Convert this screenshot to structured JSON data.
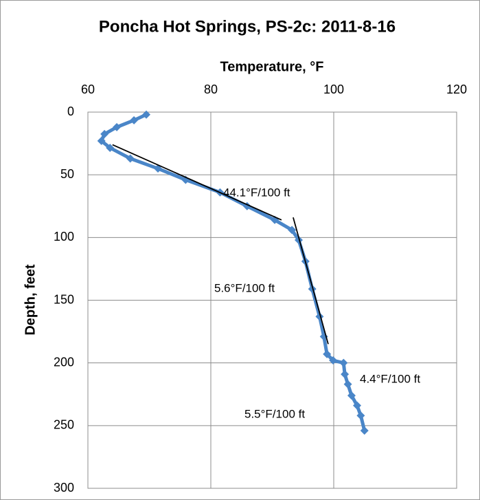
{
  "chart_data": {
    "type": "scatter",
    "title": "Poncha Hot Springs, PS-2c: 2011-8-16",
    "x_label": "Temperature, °F",
    "y_label": "Depth, feet",
    "x_axis_position": "top",
    "y_inverted": true,
    "grid": true,
    "xlim": [
      60,
      120
    ],
    "xticks": [
      60,
      80,
      100,
      120
    ],
    "ylim": [
      0,
      300
    ],
    "yticks": [
      0,
      50,
      100,
      150,
      200,
      250,
      300
    ],
    "series": [
      {
        "color": "#4a86c8",
        "x": [
          69.5,
          67.5,
          64.7,
          62.7,
          62.2,
          63.6,
          66.9,
          71.4,
          75.9,
          81.5,
          85.9,
          90.4,
          93.2,
          94.3,
          95.4,
          96.5,
          97.7,
          98.4,
          98.9,
          99.9,
          101.6,
          101.8,
          102.3,
          102.9,
          103.8,
          104.4,
          105
        ],
        "y": [
          2,
          6.5,
          12,
          17.5,
          23,
          28.5,
          37,
          45,
          54,
          64,
          75,
          86,
          94,
          102,
          119,
          141,
          163,
          179,
          193,
          198,
          200,
          209,
          217,
          226,
          234,
          242,
          254
        ]
      }
    ],
    "trendlines": [
      {
        "color": "#000000",
        "x": [
          64,
          91.5
        ],
        "y": [
          26,
          86
        ]
      },
      {
        "color": "#000000",
        "x": [
          93.4,
          99.1
        ],
        "y": [
          84,
          185
        ]
      }
    ],
    "annotations": [
      "44.1°F/100 ft",
      "5.6°F/100 ft",
      "4.4°F/100 ft",
      "5.5°F/100 ft"
    ]
  }
}
